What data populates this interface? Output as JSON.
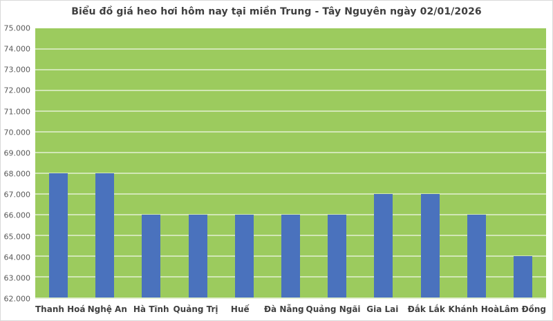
{
  "chart_data": {
    "type": "bar",
    "title": "Biểu đồ giá heo hơi hôm nay tại miền Trung - Tây Nguyên ngày 02/01/2026",
    "categories": [
      "Thanh Hoá",
      "Nghệ An",
      "Hà Tĩnh",
      "Quảng Trị",
      "Huế",
      "Đà Nẵng",
      "Quảng Ngãi",
      "Gia Lai",
      "Đắk Lắk",
      "Khánh Hoà",
      "Lâm Đồng"
    ],
    "values": [
      68000,
      68000,
      66000,
      66000,
      66000,
      66000,
      66000,
      67000,
      67000,
      66000,
      64000
    ],
    "xlabel": "",
    "ylabel": "",
    "ylim": [
      62000,
      75000
    ],
    "ytick_step": 1000,
    "ytick_labels": [
      "75.000",
      "74.000",
      "73.000",
      "72.000",
      "71.000",
      "70.000",
      "69.000",
      "68.000",
      "67.000",
      "66.000",
      "65.000",
      "64.000",
      "63.000",
      "62.000"
    ],
    "grid": "horizontal",
    "legend": "none",
    "colors": {
      "bar": "#4a72bd",
      "plot_background": "#9ccb5e",
      "gridline": "rgba(255,255,255,0.55)",
      "title_text": "#3f3f3f",
      "ytick_text": "#595959",
      "category_text": "#404040",
      "chart_border": "#d9d9d9",
      "page_background": "#ffffff"
    }
  }
}
